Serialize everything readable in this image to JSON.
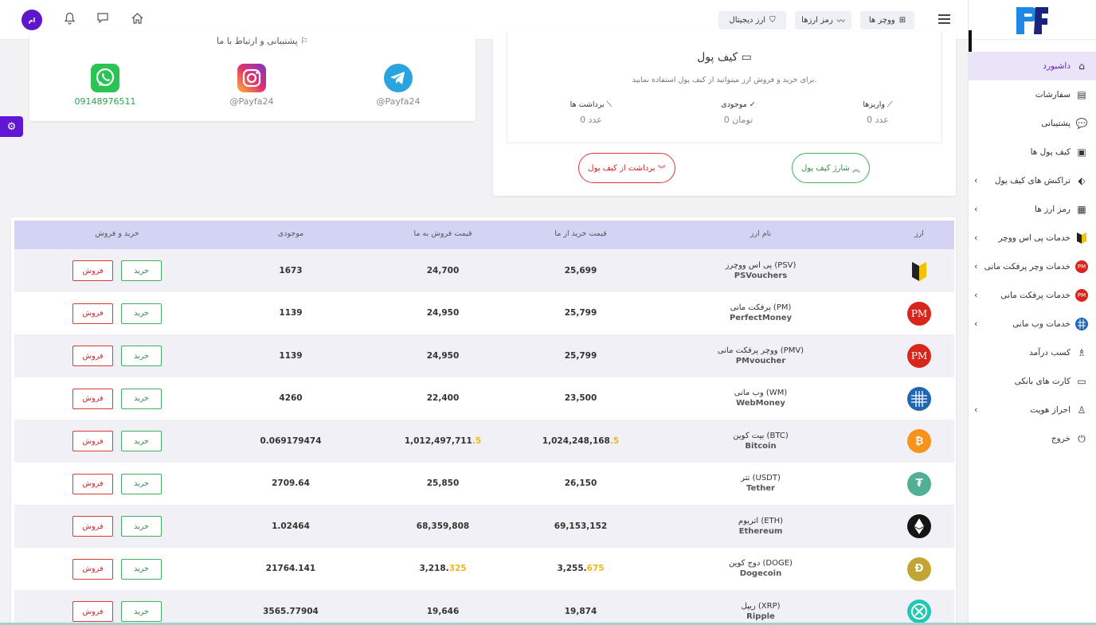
{
  "topbar": {
    "nav": [
      {
        "label": "ووچر ها",
        "icon": "grid-icon"
      },
      {
        "label": "رمز ارزها",
        "icon": "pulse-icon"
      },
      {
        "label": "ارز دیجیتال",
        "icon": "shield-icon"
      }
    ],
    "avatar": "ام"
  },
  "sidebar": {
    "items": [
      {
        "label": "داشبورد",
        "icon": "home-icon",
        "active": true,
        "submenu": false
      },
      {
        "label": "سفارشات",
        "icon": "document-icon",
        "active": false,
        "submenu": false
      },
      {
        "label": "پشتیبانی",
        "icon": "chat-icon",
        "active": false,
        "submenu": false
      },
      {
        "label": "کیف پول ها",
        "icon": "wallet-icon",
        "active": false,
        "submenu": false
      },
      {
        "label": "تراکنش های کیف پول",
        "icon": "tag-icon",
        "active": false,
        "submenu": true
      },
      {
        "label": "رمز ارز ها",
        "icon": "chart-icon",
        "active": false,
        "submenu": true
      },
      {
        "label": "خدمات پی اس ووچر",
        "icon": "psvoucher-icon",
        "active": false,
        "submenu": true
      },
      {
        "label": "خدمات وچر پرفکت مانی",
        "icon": "pm-icon",
        "active": false,
        "submenu": true
      },
      {
        "label": "خدمات پرفکت مانی",
        "icon": "pm-icon",
        "active": false,
        "submenu": true
      },
      {
        "label": "خدمات وب مانی",
        "icon": "webmoney-icon",
        "active": false,
        "submenu": true
      },
      {
        "label": "کسب درآمد",
        "icon": "network-icon",
        "active": false,
        "submenu": false
      },
      {
        "label": "کارت های بانکی",
        "icon": "card-icon",
        "active": false,
        "submenu": false
      },
      {
        "label": "احراز هویت",
        "icon": "user-icon",
        "active": false,
        "submenu": true
      },
      {
        "label": "خروج",
        "icon": "power-icon",
        "active": false,
        "submenu": false
      }
    ]
  },
  "support": {
    "title": "پشتیبانی و ارتباط با ما",
    "contacts": [
      {
        "name": "@Payfa24",
        "icon": "telegram-icon"
      },
      {
        "name": "@Payfa24",
        "icon": "instagram-icon"
      },
      {
        "name": "09148976511",
        "icon": "whatsapp-icon"
      }
    ]
  },
  "wallet": {
    "title": "کیف پول",
    "description": "برای خرید و فروش ارز میتوانید از کیف پول استفاده نمایید.",
    "stats": [
      {
        "label": "واریزها",
        "value": "0 عدد"
      },
      {
        "label": "موجودی",
        "value": "0 تومان"
      },
      {
        "label": "برداشت ها",
        "value": "0 عدد"
      }
    ],
    "charge_label": "شارژ کیف پول",
    "withdraw_label": "برداشت از کیف پول"
  },
  "table": {
    "headers": {
      "currency": "ارز",
      "name": "نام ارز",
      "buy_price": "قیمت خرید از ما",
      "sell_price": "قیمت فروش به ما",
      "stock": "موجودی",
      "actions": "خرید و فروش"
    },
    "buy_label": "خرید",
    "sell_label": "فروش",
    "rows": [
      {
        "name_fa": "پی اس ووچرز (PSV)",
        "name_en": "PSVouchers",
        "buy": "25,699",
        "buy_dec": "",
        "sell": "24,700",
        "sell_dec": "",
        "stock": "1673",
        "coin": "psv",
        "color": "#ffffff"
      },
      {
        "name_fa": "پرفکت مانی (PM)",
        "name_en": "PerfectMoney",
        "buy": "25,799",
        "buy_dec": "",
        "sell": "24,950",
        "sell_dec": "",
        "stock": "1139",
        "coin": "pm",
        "color": "#d8261d"
      },
      {
        "name_fa": "ووچر پرفکت مانی (PMV)",
        "name_en": "PMvoucher",
        "buy": "25,799",
        "buy_dec": "",
        "sell": "24,950",
        "sell_dec": "",
        "stock": "1139",
        "coin": "pm",
        "color": "#d8261d"
      },
      {
        "name_fa": "وب مانی (WM)",
        "name_en": "WebMoney",
        "buy": "23,500",
        "buy_dec": "",
        "sell": "22,400",
        "sell_dec": "",
        "stock": "4260",
        "coin": "wm",
        "color": "#1f67b3"
      },
      {
        "name_fa": "بیت کوین (BTC)",
        "name_en": "Bitcoin",
        "buy": "1,024,248,168",
        "buy_dec": ".5",
        "sell": "1,012,497,711",
        "sell_dec": ".5",
        "stock": "0.069179474",
        "coin": "btc",
        "color": "#f7931a"
      },
      {
        "name_fa": "تتر (USDT)",
        "name_en": "Tether",
        "buy": "26,150",
        "buy_dec": "",
        "sell": "25,850",
        "sell_dec": "",
        "stock": "2709.64",
        "coin": "usdt",
        "color": "#50af95"
      },
      {
        "name_fa": "اتریوم (ETH)",
        "name_en": "Ethereum",
        "buy": "69,153,152",
        "buy_dec": "",
        "sell": "68,359,808",
        "sell_dec": "",
        "stock": "1.02464",
        "coin": "eth",
        "color": "#141414"
      },
      {
        "name_fa": "دوج کوین (DOGE)",
        "name_en": "Dogecoin",
        "buy": "3,255.",
        "buy_dec": "675",
        "sell": "3,218.",
        "sell_dec": "325",
        "stock": "21764.141",
        "coin": "doge",
        "color": "#c2a633"
      },
      {
        "name_fa": "ریپل (XRP)",
        "name_en": "Ripple",
        "buy": "19,874",
        "buy_dec": "",
        "sell": "19,646",
        "sell_dec": "",
        "stock": "3565.77904",
        "coin": "xrp",
        "color": "#23c8b4"
      }
    ]
  }
}
